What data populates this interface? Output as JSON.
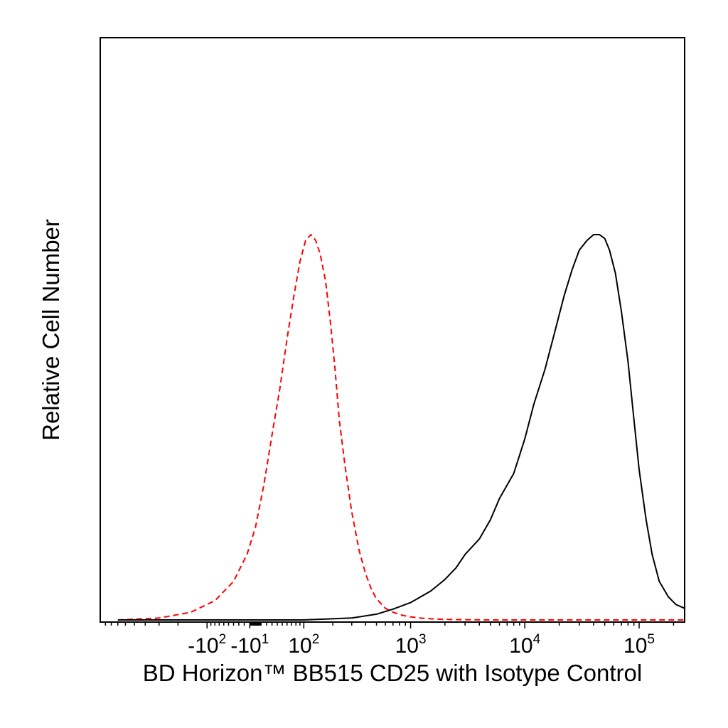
{
  "chart_data": {
    "type": "line",
    "title": "",
    "xlabel": "BD Horizon™ BB515 CD25 with Isotype Control",
    "ylabel": "Relative Cell Number",
    "x_scale": "biexponential (logicle)",
    "xlim": [
      -1000,
      250000
    ],
    "ylim": [
      0,
      100
    ],
    "grid": false,
    "legend": "none",
    "x_tick_labels": [
      {
        "base": "-10",
        "exp": "2",
        "value": -100
      },
      {
        "base": "-10",
        "exp": "1",
        "value": -10
      },
      {
        "base": "10",
        "exp": "2",
        "value": 100
      },
      {
        "base": "10",
        "exp": "3",
        "value": 1000
      },
      {
        "base": "10",
        "exp": "4",
        "value": 10000
      },
      {
        "base": "10",
        "exp": "5",
        "value": 100000
      }
    ],
    "series": [
      {
        "style": "dashed",
        "color": "#ff0000",
        "x": [
          -700,
          -300,
          -150,
          -80,
          -40,
          -15,
          0,
          15,
          30,
          45,
          60,
          75,
          90,
          105,
          120,
          135,
          150,
          170,
          190,
          210,
          230,
          260,
          300,
          350,
          400,
          450,
          500,
          600,
          700,
          850,
          1000,
          1300,
          1700,
          2500,
          5000,
          10000,
          50000,
          250000
        ],
        "values": [
          0,
          0.5,
          2,
          5,
          10,
          17,
          24,
          35,
          48,
          60,
          73,
          84,
          93,
          98.5,
          100,
          98.5,
          95,
          88,
          77,
          65,
          52,
          40,
          28,
          18,
          12,
          8,
          5.5,
          3,
          2,
          1.2,
          0.8,
          0.4,
          0.2,
          0.1,
          0,
          0,
          0,
          0
        ]
      },
      {
        "style": "solid",
        "color": "#000000",
        "x": [
          -700,
          100,
          300,
          500,
          700,
          1000,
          1500,
          2000,
          2500,
          3000,
          4000,
          5000,
          6000,
          8000,
          10000,
          12000,
          15000,
          18000,
          22000,
          26000,
          30000,
          35000,
          40000,
          45000,
          50000,
          55000,
          62000,
          70000,
          80000,
          90000,
          100000,
          115000,
          130000,
          150000,
          180000,
          210000,
          250000
        ],
        "values": [
          0,
          0,
          0.5,
          1.5,
          2.8,
          4.5,
          7.5,
          10.5,
          13.5,
          17,
          21,
          26,
          31.5,
          38,
          47,
          56,
          65,
          74,
          84,
          91,
          96,
          98.5,
          100,
          100,
          99,
          96,
          90,
          80,
          67,
          52,
          39,
          26,
          17,
          10,
          6,
          4,
          3
        ]
      }
    ]
  }
}
